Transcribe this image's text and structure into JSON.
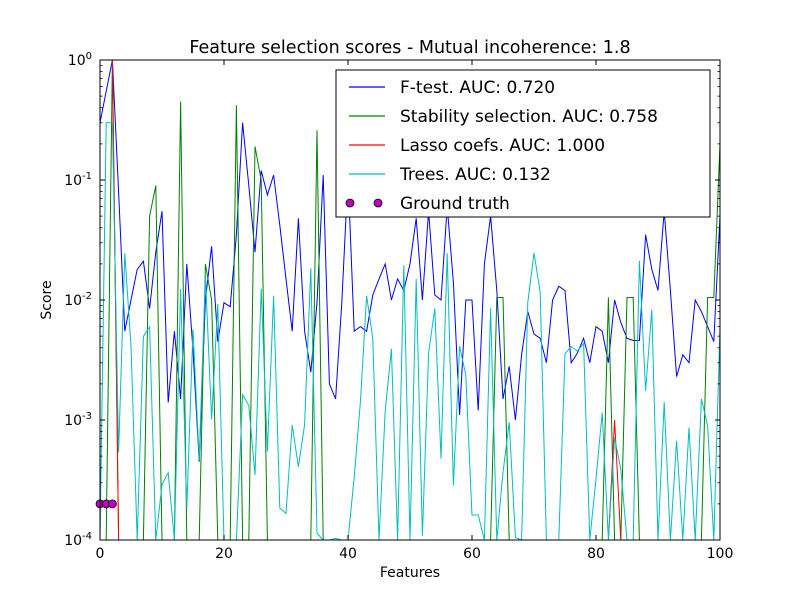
{
  "chart_data": {
    "type": "line",
    "title": "Feature selection scores - Mutual incoherence: 1.8",
    "xlabel": "Features",
    "ylabel": "Score",
    "xlim": [
      0,
      100
    ],
    "ylim": [
      0.0001,
      1
    ],
    "yscale": "log",
    "grid": false,
    "legend_position": "top-right",
    "x_ticks": [
      {
        "value": 0,
        "label": "0"
      },
      {
        "value": 20,
        "label": "20"
      },
      {
        "value": 40,
        "label": "40"
      },
      {
        "value": 60,
        "label": "60"
      },
      {
        "value": 80,
        "label": "80"
      },
      {
        "value": 100,
        "label": "100"
      }
    ],
    "y_ticks": [
      {
        "value": 0.0001,
        "base": "10",
        "exp": "-4"
      },
      {
        "value": 0.001,
        "base": "10",
        "exp": "-3"
      },
      {
        "value": 0.01,
        "base": "10",
        "exp": "-2"
      },
      {
        "value": 0.1,
        "base": "10",
        "exp": "-1"
      },
      {
        "value": 1,
        "base": "10",
        "exp": "0"
      }
    ],
    "series": [
      {
        "name": "F-test. AUC: 0.720",
        "color": "#0000ff",
        "x": [
          0,
          1,
          2,
          3,
          4,
          5,
          6,
          7,
          8,
          9,
          10,
          11,
          12,
          13,
          14,
          15,
          16,
          17,
          18,
          19,
          20,
          21,
          22,
          23,
          24,
          25,
          26,
          27,
          28,
          29,
          30,
          31,
          32,
          33,
          34,
          35,
          36,
          37,
          38,
          39,
          40,
          41,
          42,
          43,
          44,
          45,
          46,
          47,
          48,
          49,
          50,
          51,
          52,
          53,
          54,
          55,
          56,
          57,
          58,
          59,
          60,
          61,
          62,
          63,
          64,
          65,
          66,
          67,
          68,
          69,
          70,
          71,
          72,
          73,
          74,
          75,
          76,
          77,
          78,
          79,
          80,
          81,
          82,
          83,
          84,
          85,
          86,
          87,
          88,
          89,
          90,
          91,
          92,
          93,
          94,
          95,
          96,
          97,
          98,
          99,
          100
        ],
        "values": [
          0.3,
          0.55,
          1.0,
          0.08,
          0.0055,
          0.01,
          0.018,
          0.021,
          0.0085,
          0.025,
          0.055,
          0.0014,
          0.0055,
          0.0015,
          0.02,
          0.0038,
          0.00045,
          0.01,
          0.028,
          0.0045,
          0.0095,
          0.0088,
          0.035,
          0.3,
          0.09,
          0.025,
          0.12,
          0.075,
          0.11,
          0.042,
          0.015,
          0.0055,
          0.048,
          0.0055,
          0.0025,
          0.0095,
          0.11,
          0.002,
          0.0015,
          0.0095,
          0.11,
          0.0055,
          0.006,
          0.0055,
          0.011,
          0.015,
          0.02,
          0.01,
          0.015,
          0.012,
          0.02,
          0.048,
          0.01,
          0.055,
          0.011,
          0.01,
          0.06,
          0.014,
          0.0011,
          0.01,
          0.01,
          0.0012,
          0.02,
          0.05,
          0.012,
          0.0015,
          0.0028,
          0.001,
          0.0035,
          0.008,
          0.0052,
          0.0048,
          0.003,
          0.01,
          0.013,
          0.012,
          0.003,
          0.0036,
          0.0048,
          0.003,
          0.006,
          0.0055,
          0.003,
          0.01,
          0.0065,
          0.0048,
          0.0046,
          0.0046,
          0.035,
          0.018,
          0.012,
          0.055,
          0.012,
          0.0023,
          0.0035,
          0.003,
          0.01,
          0.008,
          0.006,
          0.0045,
          0.05
        ],
        "overwrite_hint": ""
      }
    ]
  },
  "legend_entries": [
    {
      "label": "F-test. AUC: 0.720",
      "color": "#0000ff",
      "kind": "line"
    },
    {
      "label": "Stability selection. AUC: 0.758",
      "color": "#008000",
      "kind": "line"
    },
    {
      "label": "Lasso coefs. AUC: 1.000",
      "color": "#ff0000",
      "kind": "line"
    },
    {
      "label": "Trees. AUC: 0.132",
      "color": "#00bfbf",
      "kind": "line"
    },
    {
      "label": "Ground truth",
      "color": "#bf00bf",
      "kind": "marker"
    }
  ]
}
